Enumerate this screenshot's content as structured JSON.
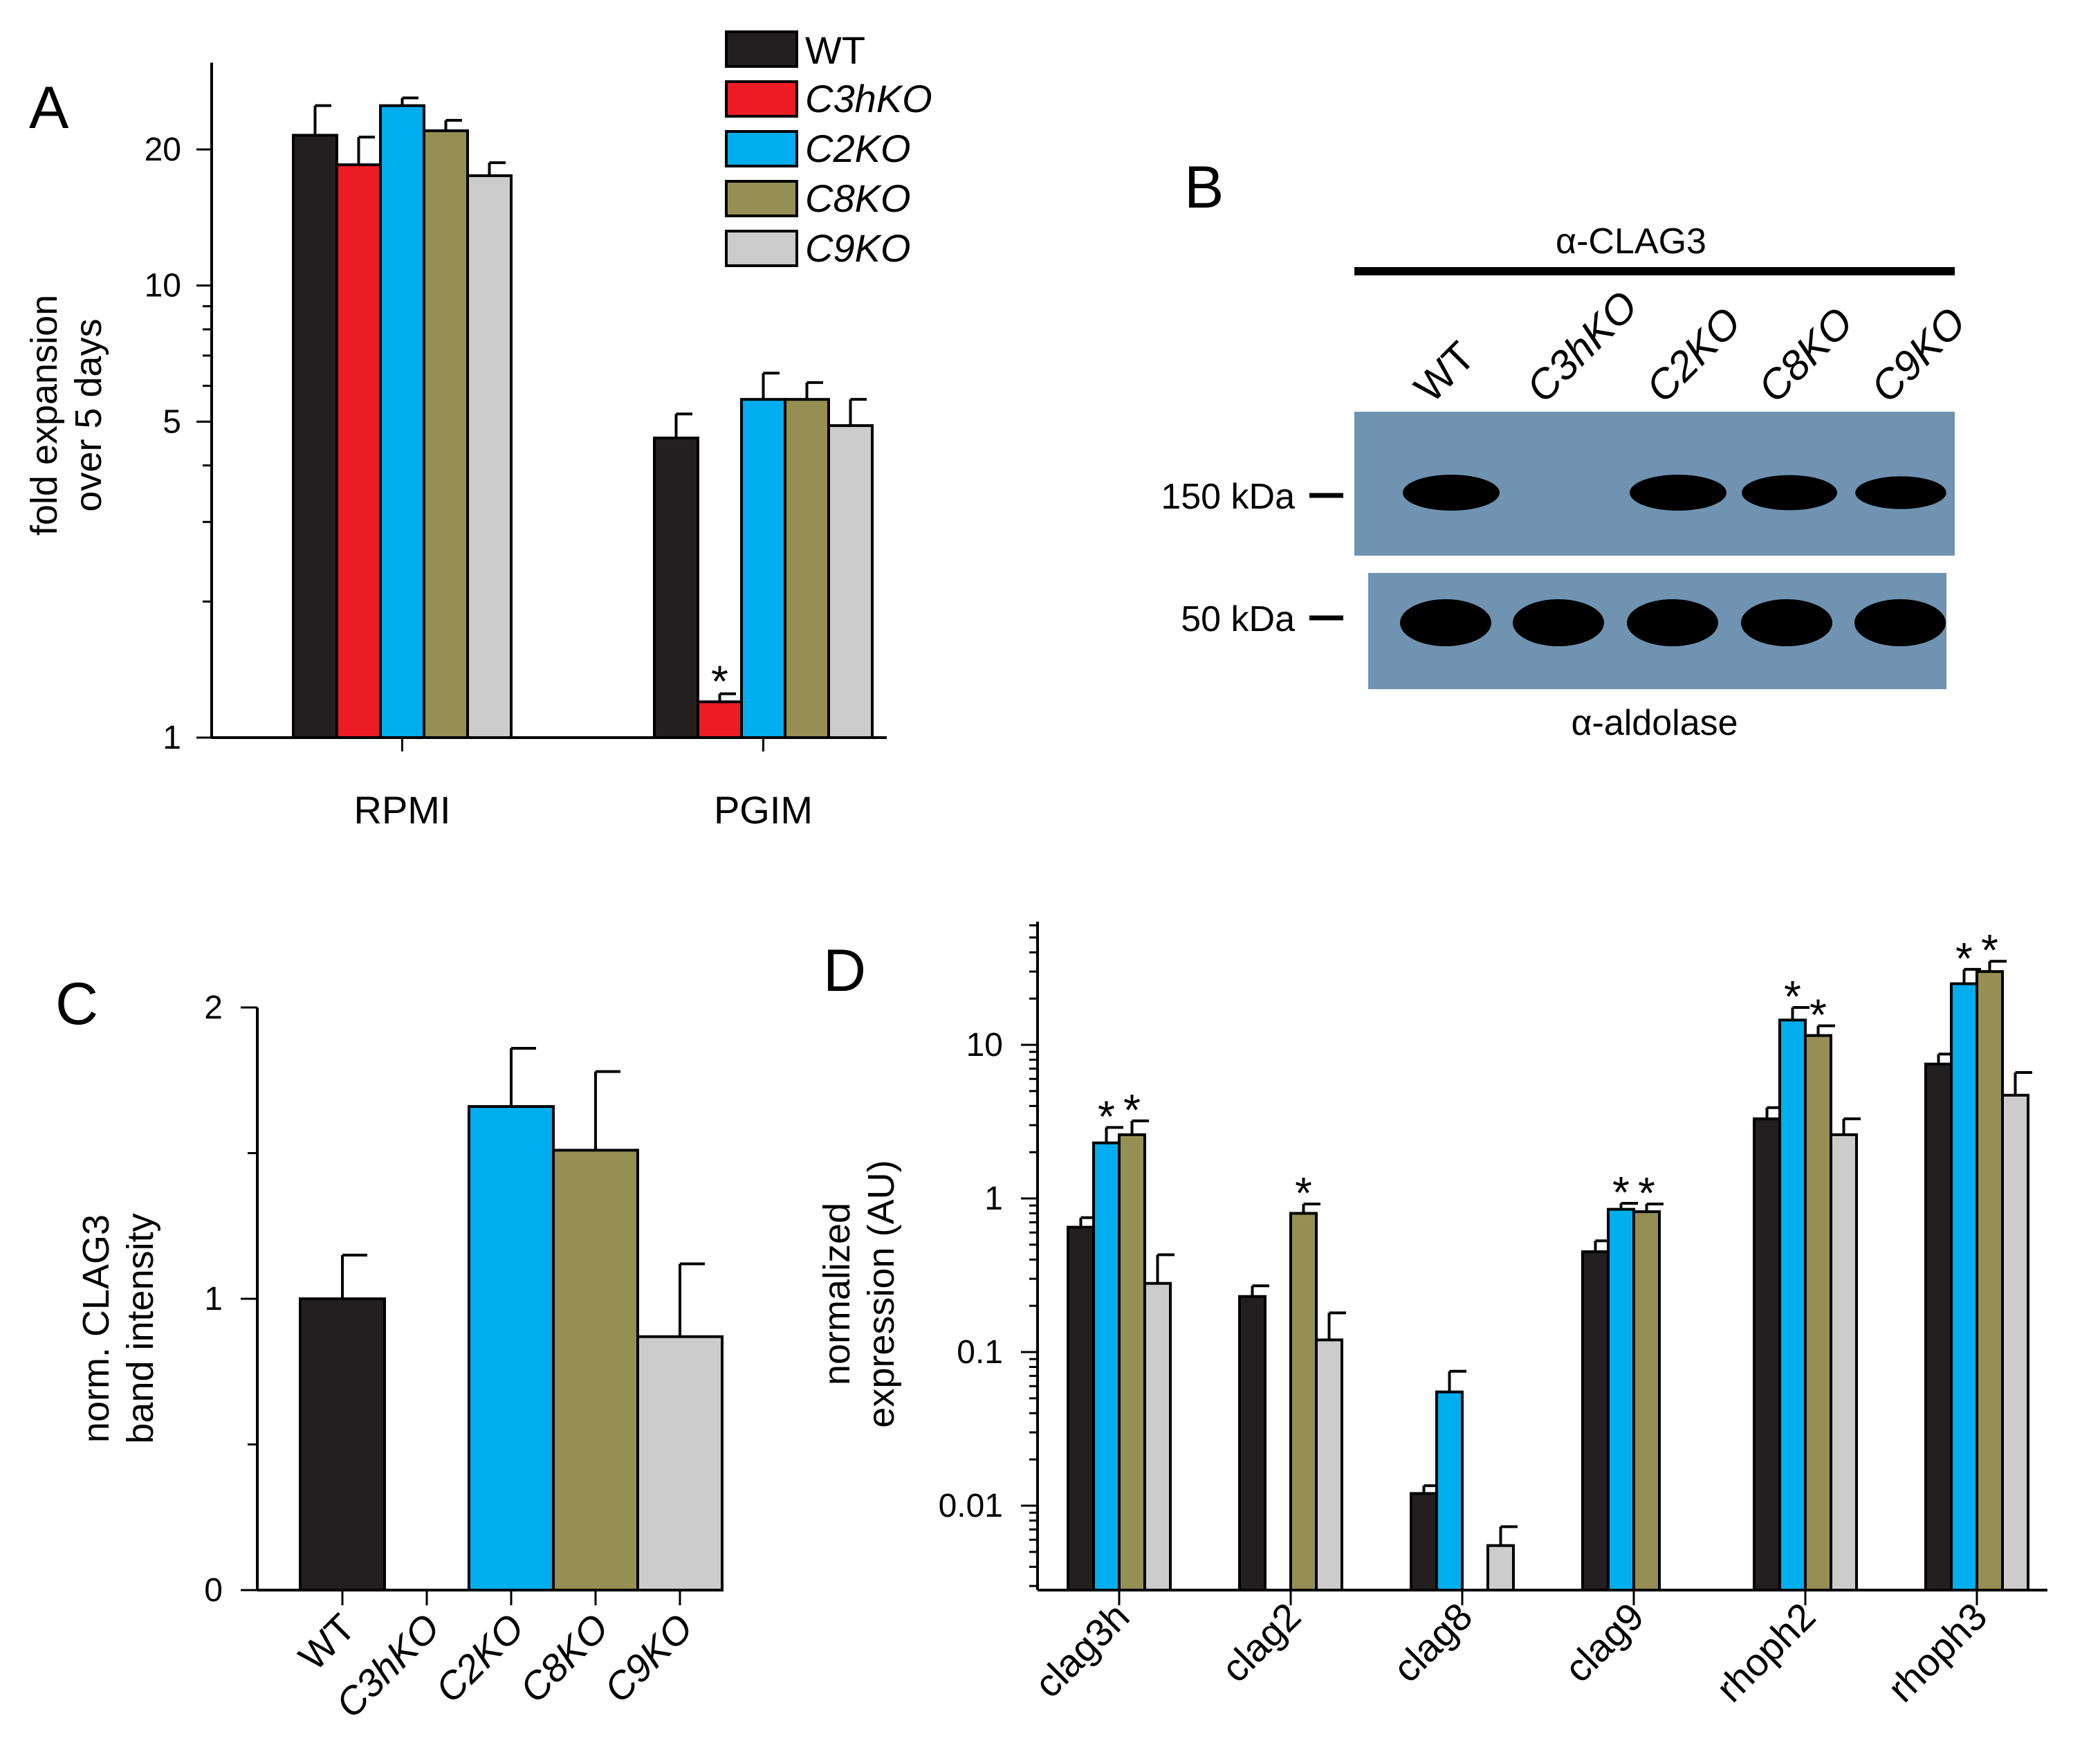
{
  "colors": {
    "WT": "#231f20",
    "C3hKO": "#ed1c24",
    "C2KO": "#00aeef",
    "C8KO": "#958f54",
    "C9KO": "#cccccc",
    "blot": "#6f93b1"
  },
  "legend": [
    "WT",
    "C3hKO",
    "C2KO",
    "C8KO",
    "C9KO"
  ],
  "chart_data": [
    {
      "panel": "A",
      "type": "bar",
      "scale": "log",
      "ylabel": [
        "fold expansion",
        "over 5 days"
      ],
      "yticks": [
        "1",
        "5",
        "10",
        "20"
      ],
      "ylim": [
        1,
        28
      ],
      "categories": [
        "RPMI",
        "PGIM"
      ],
      "series": [
        {
          "name": "WT",
          "values": [
            21.5,
            4.6
          ],
          "errors": [
            3.5,
            0.6
          ]
        },
        {
          "name": "C3hKO",
          "values": [
            18.5,
            1.2
          ],
          "errors": [
            2.8,
            0.05
          ]
        },
        {
          "name": "C2KO",
          "values": [
            25,
            5.6
          ],
          "errors": [
            1,
            0.8
          ]
        },
        {
          "name": "C8KO",
          "values": [
            22,
            5.6
          ],
          "errors": [
            1.2,
            0.5
          ]
        },
        {
          "name": "C9KO",
          "values": [
            17.5,
            4.9
          ],
          "errors": [
            1.2,
            0.7
          ]
        }
      ],
      "annotations": [
        {
          "category": "PGIM",
          "series": "C3hKO",
          "text": "*"
        }
      ]
    },
    {
      "panel": "C",
      "type": "bar",
      "ylabel": [
        "norm. CLAG3",
        "band intensity"
      ],
      "yticks": [
        "0",
        "1",
        "2"
      ],
      "ylim": [
        0,
        2
      ],
      "categories": [
        "WT",
        "C3hKO",
        "C2KO",
        "C8KO",
        "C9KO"
      ],
      "values": [
        1.0,
        0,
        1.66,
        1.51,
        0.87
      ],
      "errors": [
        0.15,
        0,
        0.2,
        0.27,
        0.25
      ]
    },
    {
      "panel": "D",
      "type": "bar",
      "scale": "log",
      "ylabel": [
        "normalized",
        "expression (AU)"
      ],
      "yticks": [
        "0.01",
        "0.1",
        "1",
        "10"
      ],
      "ylim": [
        0.003,
        50
      ],
      "categories": [
        "clag3h",
        "clag2",
        "clag8",
        "clag9",
        "rhoph2",
        "rhoph3"
      ],
      "series": [
        {
          "name": "WT",
          "values": [
            0.65,
            0.23,
            0.012,
            0.45,
            3.3,
            7.5
          ],
          "errors": [
            0.1,
            0.04,
            0.0015,
            0.08,
            0.6,
            1.2
          ]
        },
        {
          "name": "C2KO",
          "values": [
            2.3,
            null,
            0.055,
            0.85,
            14.5,
            25
          ],
          "errors": [
            0.6,
            null,
            0.02,
            0.08,
            3,
            6
          ]
        },
        {
          "name": "C8KO",
          "values": [
            2.6,
            0.8,
            null,
            0.82,
            11.5,
            30
          ],
          "errors": [
            0.6,
            0.12,
            null,
            0.1,
            1.8,
            5
          ]
        },
        {
          "name": "C9KO",
          "values": [
            0.28,
            0.12,
            0.0055,
            null,
            2.6,
            4.7
          ],
          "errors": [
            0.15,
            0.06,
            0.0018,
            null,
            0.7,
            1.9
          ]
        }
      ],
      "annotations": [
        {
          "category": "clag3h",
          "series": "C2KO",
          "text": "*"
        },
        {
          "category": "clag3h",
          "series": "C8KO",
          "text": "*"
        },
        {
          "category": "clag2",
          "series": "C8KO",
          "text": "*"
        },
        {
          "category": "clag9",
          "series": "C2KO",
          "text": "*"
        },
        {
          "category": "clag9",
          "series": "C8KO",
          "text": "*"
        },
        {
          "category": "rhoph2",
          "series": "C2KO",
          "text": "*"
        },
        {
          "category": "rhoph2",
          "series": "C8KO",
          "text": "*"
        },
        {
          "category": "rhoph3",
          "series": "C2KO",
          "text": "*"
        },
        {
          "category": "rhoph3",
          "series": "C8KO",
          "text": "*"
        }
      ]
    }
  ],
  "western_blot": {
    "panel": "B",
    "top_label": "α-CLAG3",
    "bottom_label": "α-aldolase",
    "lanes": [
      "WT",
      "C3hKO",
      "C2KO",
      "C8KO",
      "C9KO"
    ],
    "markers": [
      "150 kDa",
      "50 kDa"
    ],
    "clag3_band_intensity": [
      1.0,
      0,
      1.0,
      0.95,
      0.8
    ],
    "aldolase_band_intensity": [
      1.0,
      1.0,
      1.0,
      1.0,
      1.0
    ]
  }
}
